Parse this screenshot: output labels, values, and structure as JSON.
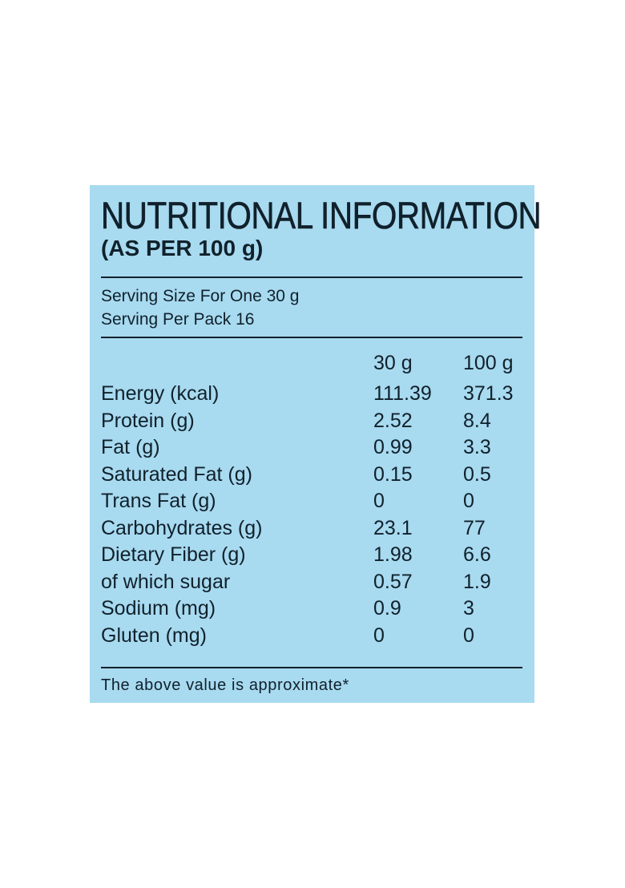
{
  "colors": {
    "panel_background": "#a8daf0",
    "text": "#10212b"
  },
  "title": "NUTRITIONAL INFORMATION",
  "subtitle": "(AS PER 100 g)",
  "serving": {
    "size": "Serving Size For One 30 g",
    "per_pack": "Serving Per Pack 16"
  },
  "columns": [
    "30 g",
    "100 g"
  ],
  "rows": [
    {
      "label": "Energy (kcal)",
      "v30": "111.39",
      "v100": "371.3"
    },
    {
      "label": "Protein (g)",
      "v30": "2.52",
      "v100": "8.4"
    },
    {
      "label": "Fat (g)",
      "v30": "0.99",
      "v100": "3.3"
    },
    {
      "label": "Saturated Fat (g)",
      "v30": "0.15",
      "v100": "0.5"
    },
    {
      "label": "Trans Fat (g)",
      "v30": "0",
      "v100": "0"
    },
    {
      "label": "Carbohydrates (g)",
      "v30": "23.1",
      "v100": "77"
    },
    {
      "label": "Dietary Fiber (g)",
      "v30": "1.98",
      "v100": "6.6"
    },
    {
      "label": "of which sugar",
      "v30": "0.57",
      "v100": "1.9"
    },
    {
      "label": "Sodium (mg)",
      "v30": "0.9",
      "v100": "3"
    },
    {
      "label": "Gluten (mg)",
      "v30": "0",
      "v100": "0"
    }
  ],
  "footer": "The above value is approximate*"
}
